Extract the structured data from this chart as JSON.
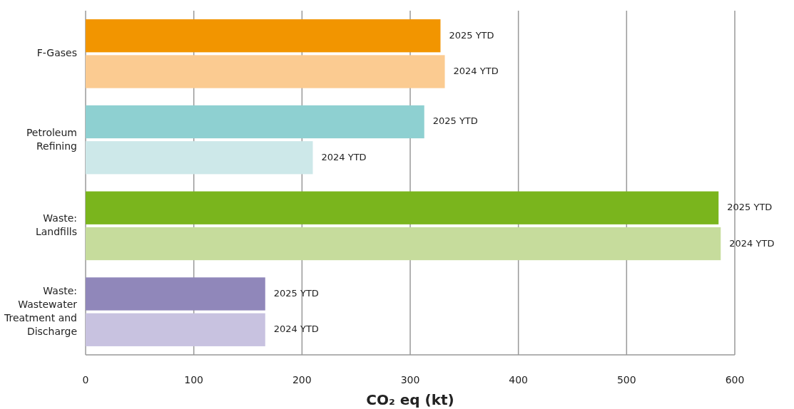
{
  "chart_data": {
    "type": "bar",
    "orientation": "horizontal",
    "xlabel": "CO₂ eq (kt)",
    "categories": [
      "F-Gases",
      "Petroleum Refining",
      "Waste: Landfills",
      "Waste: Wastewater Treatment and Discharge"
    ],
    "series": [
      {
        "name": "2025 YTD",
        "colors": [
          "#f29500",
          "#8ed0d1",
          "#7ab51d",
          "#9087ba"
        ],
        "values": [
          328,
          313,
          585,
          166
        ]
      },
      {
        "name": "2024 YTD",
        "colors": [
          "#fbcb91",
          "#cde8e9",
          "#c6dc9c",
          "#c8c2e0"
        ],
        "values": [
          332,
          210,
          587,
          166
        ]
      }
    ],
    "xlim": [
      0,
      600
    ],
    "xticks": [
      0,
      100,
      200,
      300,
      400,
      500,
      600
    ],
    "grid": "x"
  }
}
